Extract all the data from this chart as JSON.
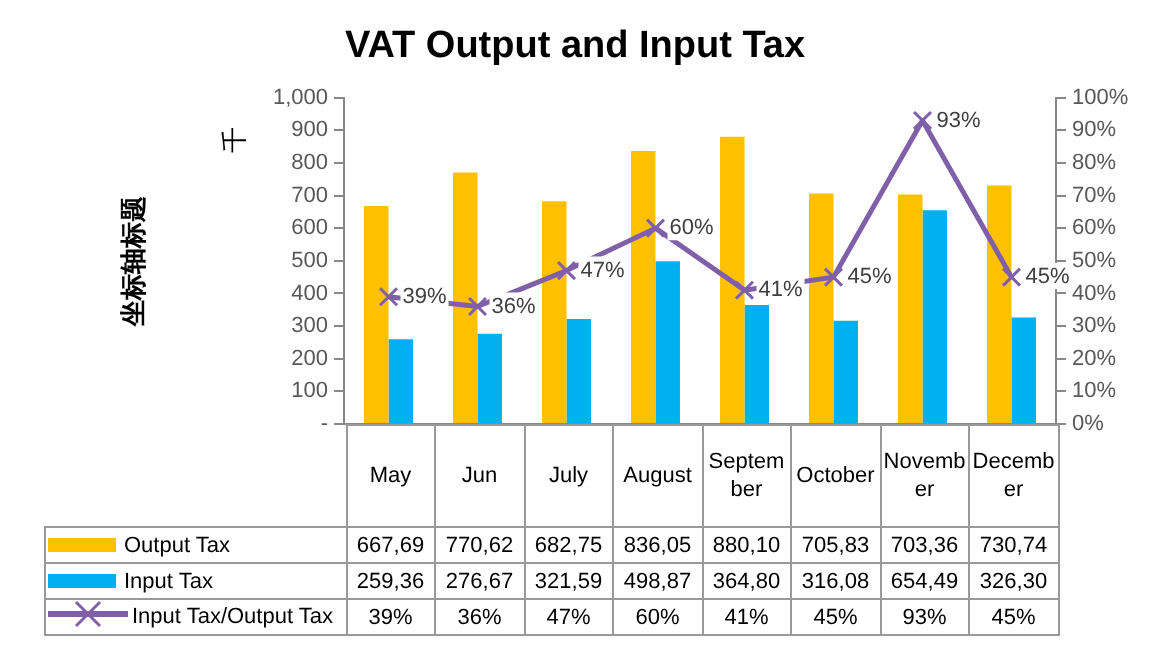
{
  "chart_data": {
    "type": "bar",
    "title": "VAT Output and Input Tax",
    "ylabel": "坐标轴标题",
    "annotations": [
      "千"
    ],
    "categories": [
      "May",
      "Jun",
      "July",
      "August",
      "September",
      "October",
      "November",
      "December"
    ],
    "series": [
      {
        "name": "Output Tax",
        "color": "#ffc000",
        "values": [
          667.69,
          770.62,
          682.75,
          836.05,
          880.1,
          705.83,
          703.36,
          730.74
        ],
        "value_labels": [
          "667,69",
          "770,62",
          "682,75",
          "836,05",
          "880,10",
          "705,83",
          "703,36",
          "730,74"
        ]
      },
      {
        "name": "Input Tax",
        "color": "#00b0f0",
        "values": [
          259.36,
          276.67,
          321.59,
          498.87,
          364.8,
          316.08,
          654.49,
          326.3
        ],
        "value_labels": [
          "259,36",
          "276,67",
          "321,59",
          "498,87",
          "364,80",
          "316,08",
          "654,49",
          "326,30"
        ]
      },
      {
        "name": "Input Tax/Output Tax",
        "type": "line",
        "axis": "y2",
        "color": "#7f60a8",
        "marker": "cross",
        "values": [
          39,
          36,
          47,
          60,
          41,
          45,
          93,
          45
        ],
        "value_labels": [
          "39%",
          "36%",
          "47%",
          "60%",
          "41%",
          "45%",
          "93%",
          "45%"
        ]
      }
    ],
    "ylim": [
      0,
      1000
    ],
    "yticks": [
      {
        "value": 0,
        "label": "-"
      },
      100,
      200,
      300,
      400,
      500,
      600,
      700,
      800,
      900,
      {
        "value": 1000,
        "label": "1,000"
      }
    ],
    "y2lim": [
      0,
      100
    ],
    "y2ticks": [
      {
        "value": 0,
        "label": "0%"
      },
      {
        "value": 10,
        "label": "10%"
      },
      {
        "value": 20,
        "label": "20%"
      },
      {
        "value": 30,
        "label": "30%"
      },
      {
        "value": 40,
        "label": "40%"
      },
      {
        "value": 50,
        "label": "50%"
      },
      {
        "value": 60,
        "label": "60%"
      },
      {
        "value": 70,
        "label": "70%"
      },
      {
        "value": 80,
        "label": "80%"
      },
      {
        "value": 90,
        "label": "90%"
      },
      {
        "value": 100,
        "label": "100%"
      }
    ],
    "grid": false,
    "legend": "bottom"
  }
}
